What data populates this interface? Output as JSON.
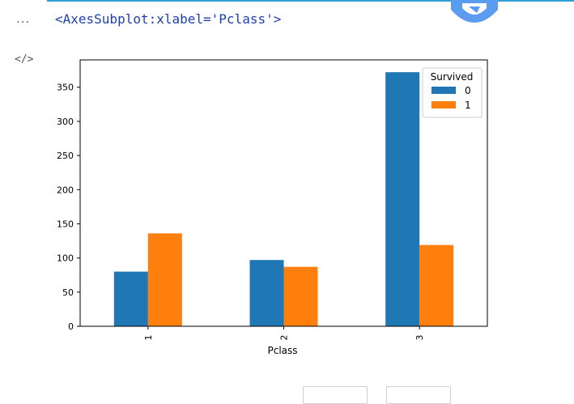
{
  "cell": {
    "prompt_dots": "...",
    "output_text": "<AxesSubplot:xlabel='Pclass'>",
    "code_toggle": "</>"
  },
  "colors": {
    "series_0": "#1f77b4",
    "series_1": "#ff7f0e",
    "accent": "#2f9fd6"
  },
  "chart_data": {
    "type": "bar",
    "categories": [
      "1",
      "2",
      "3"
    ],
    "series": [
      {
        "name": "0",
        "values": [
          80,
          97,
          372
        ]
      },
      {
        "name": "1",
        "values": [
          136,
          87,
          119
        ]
      }
    ],
    "xlabel": "Pclass",
    "ylabel": "",
    "ylim": [
      0,
      390
    ],
    "yticks": [
      0,
      50,
      100,
      150,
      200,
      250,
      300,
      350
    ],
    "legend": {
      "title": "Survived",
      "placement": "top-right"
    },
    "grid": false
  }
}
